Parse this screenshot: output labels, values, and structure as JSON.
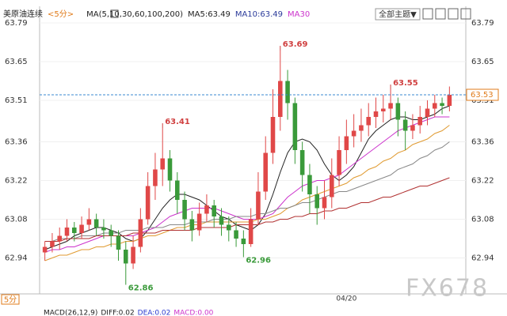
{
  "chart_data": {
    "type": "candlestick",
    "header": [
      {
        "text": "美原油连续",
        "color": "#222"
      },
      {
        "text": "<5分>",
        "color": "#e07b1a"
      },
      {
        "text": "MA(5,10,30,60,100,200)",
        "color": "#222"
      },
      {
        "text": "MA5:63.49",
        "color": "#222"
      },
      {
        "text": "MA10:63.49",
        "color": "#2a3a9a"
      },
      {
        "text": "MA30",
        "color": "#cc33cc"
      }
    ],
    "theme_button": "全部主题▼",
    "period_label": "5分",
    "footer": [
      {
        "text": "MACD(26,12,9)",
        "color": "#222"
      },
      {
        "text": "DIFF:0.02",
        "color": "#222"
      },
      {
        "text": "DEA:0.02",
        "color": "#2a3ad0"
      },
      {
        "text": "MACD:0.00",
        "color": "#cc33cc"
      }
    ],
    "watermark": "FX678",
    "x_labels": [
      {
        "index": 41,
        "label": "04/20"
      }
    ],
    "ylim": [
      62.81,
      63.85
    ],
    "yticks": [
      63.79,
      63.65,
      63.51,
      63.36,
      63.22,
      63.08,
      62.94
    ],
    "grid": true,
    "up_color": "#e04848",
    "down_color": "#3a9a3a",
    "candles": [
      [
        62.96,
        63.0,
        62.93,
        62.98
      ],
      [
        62.98,
        63.03,
        62.96,
        63.0
      ],
      [
        63.0,
        63.05,
        62.97,
        63.02
      ],
      [
        63.02,
        63.08,
        63.0,
        63.05
      ],
      [
        63.05,
        63.07,
        63.0,
        63.03
      ],
      [
        63.03,
        63.09,
        63.01,
        63.06
      ],
      [
        63.06,
        63.12,
        63.04,
        63.08
      ],
      [
        63.08,
        63.1,
        63.02,
        63.05
      ],
      [
        63.05,
        63.08,
        63.01,
        63.04
      ],
      [
        63.04,
        63.06,
        62.98,
        63.02
      ],
      [
        63.02,
        63.04,
        62.93,
        62.97
      ],
      [
        62.97,
        63.0,
        62.86,
        62.92
      ],
      [
        62.92,
        63.02,
        62.9,
        62.98
      ],
      [
        62.98,
        63.12,
        62.96,
        63.08
      ],
      [
        63.08,
        63.25,
        63.06,
        63.2
      ],
      [
        63.2,
        63.32,
        63.15,
        63.26
      ],
      [
        63.26,
        63.41,
        63.2,
        63.3
      ],
      [
        63.3,
        63.33,
        63.18,
        63.22
      ],
      [
        63.22,
        63.25,
        63.1,
        63.15
      ],
      [
        63.15,
        63.18,
        63.04,
        63.08
      ],
      [
        63.08,
        63.11,
        63.0,
        63.04
      ],
      [
        63.04,
        63.14,
        63.02,
        63.1
      ],
      [
        63.1,
        63.17,
        63.07,
        63.13
      ],
      [
        63.13,
        63.15,
        63.05,
        63.09
      ],
      [
        63.09,
        63.12,
        63.02,
        63.06
      ],
      [
        63.06,
        63.09,
        63.0,
        63.04
      ],
      [
        63.04,
        63.07,
        62.98,
        63.01
      ],
      [
        63.01,
        63.04,
        62.96,
        62.99
      ],
      [
        62.99,
        63.12,
        62.98,
        63.08
      ],
      [
        63.08,
        63.25,
        63.06,
        63.18
      ],
      [
        63.18,
        63.38,
        63.15,
        63.32
      ],
      [
        63.32,
        63.55,
        63.28,
        63.45
      ],
      [
        63.45,
        63.69,
        63.4,
        63.58
      ],
      [
        63.58,
        63.62,
        63.44,
        63.5
      ],
      [
        63.5,
        63.52,
        63.28,
        63.33
      ],
      [
        63.33,
        63.36,
        63.18,
        63.24
      ],
      [
        63.24,
        63.28,
        63.1,
        63.17
      ],
      [
        63.17,
        63.2,
        63.06,
        63.12
      ],
      [
        63.12,
        63.22,
        63.08,
        63.16
      ],
      [
        63.16,
        63.3,
        63.12,
        63.24
      ],
      [
        63.24,
        63.38,
        63.2,
        63.33
      ],
      [
        63.33,
        63.44,
        63.28,
        63.38
      ],
      [
        63.38,
        63.46,
        63.34,
        63.4
      ],
      [
        63.4,
        63.48,
        63.36,
        63.42
      ],
      [
        63.42,
        63.5,
        63.38,
        63.45
      ],
      [
        63.45,
        63.52,
        63.41,
        63.47
      ],
      [
        63.47,
        63.53,
        63.43,
        63.48
      ],
      [
        63.48,
        63.55,
        63.44,
        63.5
      ],
      [
        63.5,
        63.52,
        63.38,
        63.44
      ],
      [
        63.44,
        63.47,
        63.33,
        63.4
      ],
      [
        63.4,
        63.46,
        63.37,
        63.42
      ],
      [
        63.42,
        63.49,
        63.39,
        63.45
      ],
      [
        63.45,
        63.51,
        63.42,
        63.48
      ],
      [
        63.48,
        63.53,
        63.45,
        63.5
      ],
      [
        63.5,
        63.52,
        63.46,
        63.49
      ],
      [
        63.49,
        63.56,
        63.47,
        63.53
      ]
    ],
    "series": [
      {
        "color": "#222222",
        "values": [
          62.97,
          62.98,
          62.99,
          63.0,
          63.02,
          63.03,
          63.04,
          63.05,
          63.05,
          63.04,
          63.03,
          63.01,
          63.0,
          63.01,
          63.04,
          63.08,
          63.12,
          63.15,
          63.17,
          63.17,
          63.16,
          63.15,
          63.13,
          63.11,
          63.09,
          63.08,
          63.06,
          63.05,
          63.04,
          63.06,
          63.1,
          63.17,
          63.25,
          63.32,
          63.36,
          63.37,
          63.36,
          63.33,
          63.28,
          63.24,
          63.22,
          63.24,
          63.27,
          63.32,
          63.37,
          63.4,
          63.42,
          63.44,
          63.45,
          63.45,
          63.44,
          63.44,
          63.45,
          63.46,
          63.48,
          63.49
        ]
      },
      {
        "color": "#cc33cc",
        "values": [
          62.96,
          62.97,
          62.97,
          62.98,
          62.98,
          62.99,
          63.0,
          63.01,
          63.02,
          63.02,
          63.02,
          63.02,
          63.02,
          63.03,
          63.04,
          63.05,
          63.07,
          63.09,
          63.1,
          63.11,
          63.12,
          63.12,
          63.12,
          63.12,
          63.11,
          63.1,
          63.09,
          63.08,
          63.08,
          63.08,
          63.09,
          63.1,
          63.13,
          63.16,
          63.18,
          63.2,
          63.21,
          63.22,
          63.22,
          63.23,
          63.24,
          63.26,
          63.28,
          63.3,
          63.32,
          63.34,
          63.36,
          63.38,
          63.4,
          63.41,
          63.42,
          63.43,
          63.44,
          63.45,
          63.45,
          63.45
        ]
      },
      {
        "color": "#e09a30",
        "values": [
          62.93,
          62.94,
          62.95,
          62.95,
          62.96,
          62.97,
          62.97,
          62.98,
          62.98,
          62.99,
          62.99,
          63.0,
          63.0,
          63.01,
          63.02,
          63.02,
          63.03,
          63.04,
          63.05,
          63.05,
          63.06,
          63.06,
          63.07,
          63.07,
          63.07,
          63.07,
          63.07,
          63.07,
          63.07,
          63.08,
          63.08,
          63.09,
          63.1,
          63.12,
          63.13,
          63.15,
          63.16,
          63.17,
          63.18,
          63.19,
          63.2,
          63.21,
          63.23,
          63.24,
          63.26,
          63.27,
          63.29,
          63.3,
          63.32,
          63.33,
          63.35,
          63.36,
          63.37,
          63.39,
          63.4,
          63.42
        ]
      },
      {
        "color": "#888888",
        "values": [
          63.0,
          63.0,
          63.01,
          63.01,
          63.01,
          63.02,
          63.02,
          63.02,
          63.03,
          63.03,
          63.03,
          63.04,
          63.04,
          63.04,
          63.05,
          63.05,
          63.05,
          63.06,
          63.06,
          63.06,
          63.07,
          63.07,
          63.07,
          63.08,
          63.08,
          63.08,
          63.09,
          63.09,
          63.09,
          63.1,
          63.1,
          63.11,
          63.12,
          63.12,
          63.13,
          63.14,
          63.14,
          63.15,
          63.16,
          63.17,
          63.18,
          63.18,
          63.19,
          63.2,
          63.21,
          63.22,
          63.23,
          63.24,
          63.26,
          63.27,
          63.28,
          63.3,
          63.31,
          63.33,
          63.34,
          63.36
        ]
      },
      {
        "color": "#b03030",
        "values": [
          63.0,
          63.0,
          63.0,
          63.01,
          63.01,
          63.01,
          63.01,
          63.02,
          63.02,
          63.02,
          63.02,
          63.02,
          63.03,
          63.03,
          63.03,
          63.03,
          63.04,
          63.04,
          63.04,
          63.04,
          63.04,
          63.05,
          63.05,
          63.05,
          63.05,
          63.05,
          63.06,
          63.06,
          63.06,
          63.06,
          63.07,
          63.07,
          63.08,
          63.08,
          63.09,
          63.09,
          63.1,
          63.1,
          63.11,
          63.11,
          63.12,
          63.12,
          63.13,
          63.14,
          63.14,
          63.15,
          63.16,
          63.16,
          63.17,
          63.18,
          63.19,
          63.2,
          63.2,
          63.21,
          63.22,
          63.23
        ]
      }
    ],
    "annotations": [
      {
        "index": 32,
        "value": 63.69,
        "color": "#d04040"
      },
      {
        "index": 47,
        "value": 63.55,
        "color": "#d04040"
      },
      {
        "index": 16,
        "value": 63.41,
        "color": "#d04040"
      },
      {
        "index": 11,
        "value": 62.86,
        "color": "#3a9a3a"
      },
      {
        "index": 27,
        "value": 62.96,
        "color": "#3a9a3a"
      }
    ],
    "last_price": 63.53,
    "last_price_color": "#e07b1a"
  }
}
